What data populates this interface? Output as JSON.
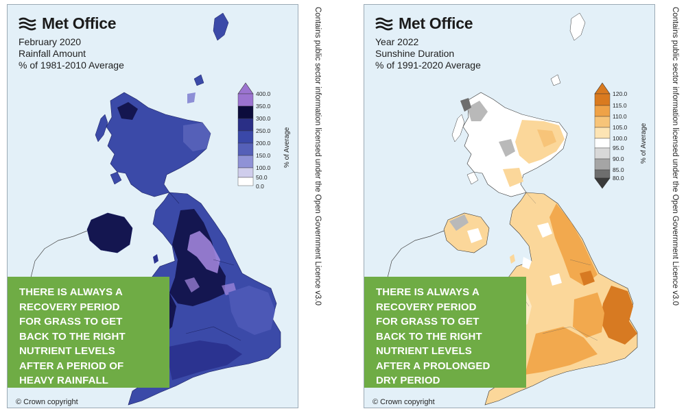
{
  "panels": [
    {
      "brand": "Met Office",
      "title_lines": [
        "February 2020",
        "Rainfall Amount",
        "% of 1981-2010 Average"
      ],
      "legend": {
        "title": "% of Average",
        "labels": [
          "400.0",
          "350.0",
          "300.0",
          "250.0",
          "200.0",
          "150.0",
          "100.0",
          "50.0",
          "0.0"
        ],
        "colors": [
          "#ffffff",
          "#cfcdec",
          "#8f92d6",
          "#5560b8",
          "#3a48a8",
          "#2a2f86",
          "#0c0c3c",
          "#9b74d0"
        ]
      },
      "callout_lines": [
        "THERE IS ALWAYS A",
        "RECOVERY PERIOD",
        "FOR GRASS TO GET",
        "BACK TO THE RIGHT",
        "NUTRIENT LEVELS",
        "AFTER A PERIOD OF",
        "HEAVY RAINFALL"
      ],
      "copyright": "© Crown copyright",
      "map_colors": {
        "base": "#3b4aa8",
        "dark": "#141650",
        "mid": "#2b3390",
        "light": "#8d8fd6",
        "purple": "#a78ae0"
      }
    },
    {
      "brand": "Met Office",
      "title_lines": [
        "Year 2022",
        "Sunshine Duration",
        "% of 1991-2020 Average"
      ],
      "legend": {
        "title": "% of Average",
        "labels": [
          "120.0",
          "115.0",
          "110.0",
          "105.0",
          "100.0",
          "95.0",
          "90.0",
          "85.0",
          "80.0"
        ],
        "colors": [
          "#3a3a3a",
          "#6e6e6e",
          "#a5a5a5",
          "#d8d8d8",
          "#ffffff",
          "#fde4b4",
          "#f7c479",
          "#efa247",
          "#d97a1f"
        ]
      },
      "callout_lines": [
        "THERE IS ALWAYS A",
        "RECOVERY PERIOD",
        "FOR GRASS TO GET",
        "BACK TO THE RIGHT",
        "NUTRIENT LEVELS",
        "AFTER A PROLONGED",
        "DRY PERIOD"
      ],
      "copyright": "© Crown copyright",
      "map_colors": {
        "base": "#fbd79a",
        "dark": "#d77a22",
        "mid": "#f2a94e",
        "light": "#fde9c3",
        "white": "#ffffff",
        "grey": "#b9b9b9"
      }
    }
  ],
  "licence_text": "Contains public sector information licensed under the Open Government Licence v3.0"
}
